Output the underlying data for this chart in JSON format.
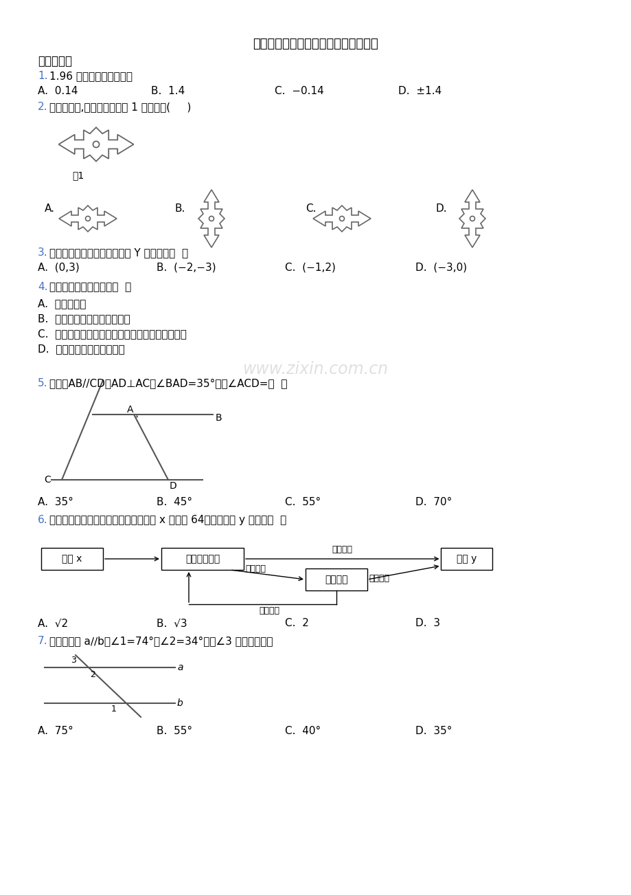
{
  "title": "人教版七年级下册数学期中测试题完整",
  "bg_color": "#ffffff",
  "text_color": "#000000",
  "blue_color": "#4472C4",
  "section1": "一、选择题",
  "q1_text": "1.96 的算术平方根是（）",
  "q1_opts": [
    "A.  0.14",
    "B.  1.4",
    "C.  −0.14",
    "D.  ±1.4"
  ],
  "q2_text": "下列图形中,哪个可以通过图 1 平移得到(     )",
  "q3_text": "坐标平面内的下列各点中，在 Y 轴上的是（  ）",
  "q3_opts": [
    "A.  (0,3)",
    "B.  (−2,−3)",
    "C.  (−1,2)",
    "D.  (−3,0)"
  ],
  "q4_text": "下列命题是假命题的是（  ）",
  "q4_a": "A.  对顶角相等",
  "q4_b": "B.  两直线平行，同旁内角相等",
  "q4_c": "C.  过直线外一点有且只有一条直线与已知直线平行",
  "q4_d": "D.  同位角相等，两直线平行",
  "q5_text": "如图，AB∕∕CD，AD⊥AC，∠BAD=35°，则∠ACD=（  ）",
  "q5_opts": [
    "A.  35°",
    "B.  45°",
    "C.  55°",
    "D.  70°"
  ],
  "q6_text": "按如图所示的程序计算，若开始输入的 x 的值是 64，则输出的 y 的值是（  ）",
  "q6_opts": [
    "A.  √2",
    "B.  √3",
    "C.  2",
    "D.  3"
  ],
  "q7_text": "如图，直线 a∕∕b，∠1=74°，∠2=34°，则∠3 的度数是（）",
  "q7_opts": [
    "A.  75°",
    "B.  55°",
    "C.  40°",
    "D.  35°"
  ],
  "watermark": "www.zixin.com.cn",
  "fig1_label": "图1",
  "box1_text": "输入 x",
  "box2_text": "取算术平方根",
  "box3_text": "取立方根",
  "box4_text": "输出 y",
  "arrow1": "是无理数",
  "arrow2": "是有理数",
  "arrow3": "是无理数",
  "arrow4": "是有理数"
}
